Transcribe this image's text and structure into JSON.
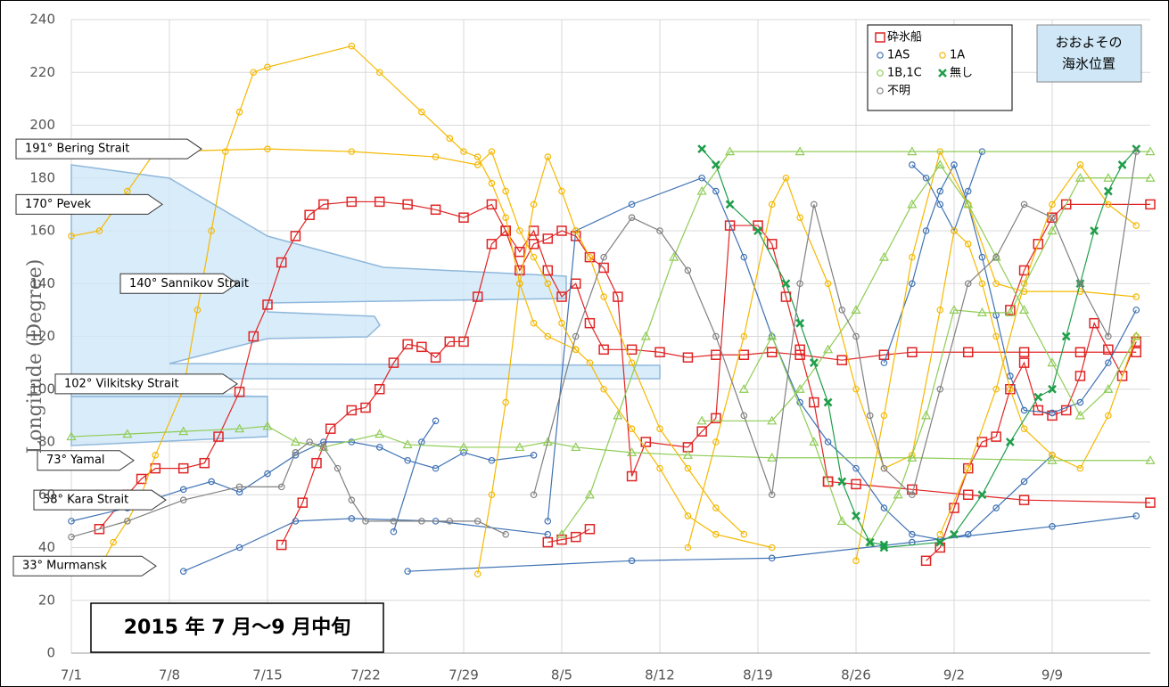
{
  "chart_data": {
    "type": "line",
    "y_label": "Longitude (Degree)",
    "xlim": [
      0,
      77
    ],
    "xticks": [
      {
        "value": 0,
        "label": "7/1"
      },
      {
        "value": 7,
        "label": "7/8"
      },
      {
        "value": 14,
        "label": "7/15"
      },
      {
        "value": 21,
        "label": "7/22"
      },
      {
        "value": 28,
        "label": "7/29"
      },
      {
        "value": 35,
        "label": "8/5"
      },
      {
        "value": 42,
        "label": "8/12"
      },
      {
        "value": 49,
        "label": "8/19"
      },
      {
        "value": 56,
        "label": "8/26"
      },
      {
        "value": 63,
        "label": "9/2"
      },
      {
        "value": 70,
        "label": "9/9"
      }
    ],
    "ylim": [
      0,
      240
    ],
    "yticks": [
      0,
      20,
      40,
      60,
      80,
      100,
      120,
      140,
      160,
      180,
      200,
      220,
      240
    ],
    "grid": true,
    "year_box": "2015 年 7 月～9 月中旬",
    "ice_box": [
      "おおよその",
      "海氷位置"
    ],
    "annotations": [
      {
        "text": "191°  Bering Strait",
        "y": 191
      },
      {
        "text": "170°  Pevek",
        "y": 170
      },
      {
        "text": "140°  Sannikov Strait",
        "y": 140
      },
      {
        "text": "102°  Vilkitsky Strait",
        "y": 102
      },
      {
        "text": "73°  Yamal",
        "y": 73
      },
      {
        "text": "58°  Kara Strait",
        "y": 58
      },
      {
        "text": "33°  Murmansk",
        "y": 33
      }
    ],
    "series": [
      {
        "name": "砕氷船",
        "color": "#e02424",
        "marker": "square",
        "tracks": [
          {
            "x": [
              2,
              4,
              5,
              6,
              8,
              9.5,
              10.5,
              12,
              13,
              14,
              15,
              16,
              17,
              18,
              20,
              22,
              24,
              26,
              28,
              30,
              31,
              32,
              33,
              34,
              35,
              36,
              37,
              38,
              40,
              42,
              44,
              46,
              48,
              50,
              52,
              55,
              58,
              60,
              64,
              68,
              72,
              76
            ],
            "values": [
              47,
              60,
              66,
              70,
              70,
              72,
              82,
              99,
              120,
              132,
              148,
              158,
              166,
              170,
              171,
              171,
              170,
              168,
              165,
              170,
              160,
              152,
              160,
              145,
              135,
              140,
              125,
              115,
              115,
              114,
              112,
              113,
              113,
              114,
              113,
              111,
              113,
              114,
              114,
              114,
              114,
              114
            ]
          },
          {
            "x": [
              15,
              16.5,
              17.5,
              18.5,
              20,
              21,
              22,
              23,
              24,
              25,
              26,
              27,
              28,
              29,
              30,
              31,
              32,
              33,
              34,
              35,
              36,
              37,
              38,
              39,
              40,
              41,
              44,
              45,
              46,
              47,
              49,
              50,
              51,
              52,
              53,
              54
            ],
            "values": [
              41,
              57,
              72,
              85,
              92,
              93,
              100,
              110,
              117,
              116,
              112,
              118,
              118,
              135,
              155,
              160,
              145,
              155,
              157,
              160,
              158,
              150,
              146,
              135,
              67,
              80,
              78,
              84,
              89,
              162,
              162,
              155,
              135,
              115,
              95,
              65
            ]
          },
          {
            "x": [
              34,
              35,
              36,
              37
            ],
            "values": [
              42,
              43,
              44,
              47
            ]
          },
          {
            "x": [
              54,
              56,
              60,
              64,
              68,
              77
            ],
            "values": [
              65,
              64,
              62,
              60,
              58,
              57
            ]
          },
          {
            "x": [
              61,
              62,
              63,
              64,
              65,
              66,
              67,
              68,
              69,
              70,
              71,
              72,
              73,
              74,
              75,
              76
            ],
            "values": [
              35,
              40,
              55,
              70,
              80,
              82,
              100,
              110,
              92,
              90,
              92,
              105,
              125,
              115,
              105,
              118
            ]
          },
          {
            "x": [
              67,
              68,
              69,
              70,
              71,
              77
            ],
            "values": [
              130,
              145,
              155,
              165,
              170,
              170
            ]
          }
        ]
      },
      {
        "name": "1AS",
        "color": "#3f72b4",
        "marker": "circle",
        "tracks": [
          {
            "x": [
              0,
              4,
              8,
              10,
              12,
              14,
              16,
              18,
              20,
              22,
              24,
              26,
              28,
              30,
              33
            ],
            "values": [
              50,
              55,
              62,
              65,
              61,
              68,
              75,
              80,
              80,
              78,
              73,
              70,
              76,
              73,
              75
            ]
          },
          {
            "x": [
              8,
              12,
              16,
              20,
              26,
              34
            ],
            "values": [
              31,
              40,
              50,
              51,
              50,
              45
            ]
          },
          {
            "x": [
              23,
              25,
              26
            ],
            "values": [
              46,
              80,
              88
            ]
          },
          {
            "x": [
              34,
              36,
              40,
              45,
              46,
              48,
              50,
              52,
              54,
              56,
              58,
              60,
              62,
              64,
              66,
              68,
              70
            ],
            "values": [
              50,
              160,
              170,
              180,
              175,
              150,
              120,
              95,
              80,
              70,
              55,
              45,
              43,
              45,
              55,
              65,
              75
            ]
          },
          {
            "x": [
              58,
              60,
              61,
              62,
              63,
              64,
              65,
              66,
              67,
              68,
              70,
              72,
              74,
              76
            ],
            "values": [
              110,
              140,
              160,
              175,
              185,
              170,
              150,
              128,
              105,
              92,
              91,
              95,
              110,
              130
            ]
          },
          {
            "x": [
              60,
              61,
              62,
              63,
              64,
              65
            ],
            "values": [
              185,
              180,
              170,
              160,
              175,
              190
            ]
          },
          {
            "x": [
              24,
              40,
              50,
              60,
              70,
              76
            ],
            "values": [
              31,
              35,
              36,
              42,
              48,
              52
            ]
          }
        ]
      },
      {
        "name": "1A",
        "color": "#f5b800",
        "marker": "circle",
        "tracks": [
          {
            "x": [
              2,
              3,
              4,
              5,
              6,
              8,
              9,
              10,
              11,
              12,
              13,
              14,
              20,
              22,
              25,
              27,
              28,
              29,
              30,
              31,
              32,
              33,
              34,
              36,
              37,
              38,
              40,
              42,
              44,
              46,
              50
            ],
            "values": [
              32,
              42,
              50,
              60,
              75,
              100,
              130,
              160,
              190,
              205,
              220,
              222,
              230,
              220,
              205,
              195,
              190,
              188,
              178,
              165,
              140,
              125,
              120,
              115,
              110,
              100,
              85,
              70,
              52,
              45,
              40
            ]
          },
          {
            "x": [
              0,
              2,
              4,
              6,
              14,
              20,
              26,
              29,
              30,
              31,
              32,
              33,
              34,
              35,
              36
            ],
            "values": [
              158,
              160,
              175,
              190,
              191,
              190,
              188,
              185,
              190,
              175,
              160,
              150,
              140,
              125,
              115
            ]
          },
          {
            "x": [
              29,
              30,
              31,
              32,
              33,
              34,
              35,
              36,
              37,
              38,
              40,
              42,
              44,
              46,
              48
            ],
            "values": [
              30,
              60,
              95,
              140,
              170,
              188,
              175,
              160,
              150,
              135,
              110,
              85,
              70,
              55,
              45
            ]
          },
          {
            "x": [
              44,
              46,
              48,
              50,
              51,
              52,
              54,
              56,
              58,
              60,
              62,
              63,
              64,
              65,
              66,
              67,
              68,
              70,
              72,
              74,
              76
            ],
            "values": [
              40,
              80,
              120,
              170,
              180,
              165,
              140,
              100,
              70,
              75,
              130,
              160,
              155,
              140,
              120,
              100,
              85,
              75,
              70,
              90,
              120
            ]
          },
          {
            "x": [
              56,
              58,
              60,
              62,
              64,
              66,
              68,
              72,
              76
            ],
            "values": [
              35,
              90,
              150,
              190,
              170,
              140,
              137,
              137,
              135
            ]
          },
          {
            "x": [
              62,
              64,
              66,
              68,
              70,
              72,
              74,
              76
            ],
            "values": [
              45,
              70,
              100,
              140,
              170,
              185,
              170,
              162
            ]
          }
        ]
      },
      {
        "name": "1B,1C",
        "color": "#8fcc55",
        "marker": "triangle",
        "tracks": [
          {
            "x": [
              0,
              4,
              8,
              12,
              14,
              16,
              18,
              22,
              24,
              28,
              32,
              34,
              36,
              40,
              44,
              50,
              60,
              70,
              77
            ],
            "values": [
              82,
              83,
              84,
              85,
              86,
              80,
              78,
              83,
              79,
              78,
              78,
              80,
              78,
              76,
              75,
              74,
              74,
              73,
              73
            ]
          },
          {
            "x": [
              35,
              37,
              39,
              41,
              43,
              45,
              47,
              52,
              60,
              77
            ],
            "values": [
              45,
              60,
              90,
              120,
              150,
              175,
              190,
              190,
              190,
              190
            ]
          },
          {
            "x": [
              45,
              50,
              52,
              54,
              56,
              58,
              60,
              62,
              64,
              66,
              68,
              70,
              72,
              74,
              76
            ],
            "values": [
              88,
              88,
              100,
              115,
              130,
              150,
              170,
              185,
              170,
              150,
              130,
              110,
              90,
              100,
              120
            ]
          },
          {
            "x": [
              48,
              50,
              53,
              55,
              57,
              59,
              61,
              63,
              65,
              67,
              70,
              72,
              74,
              77
            ],
            "values": [
              100,
              120,
              80,
              50,
              42,
              60,
              90,
              130,
              129,
              129,
              160,
              180,
              180,
              180
            ]
          }
        ]
      },
      {
        "name": "無し",
        "color": "#1f9e4a",
        "marker": "x",
        "tracks": [
          {
            "x": [
              45,
              46,
              47,
              49,
              51,
              52,
              53,
              54,
              55,
              56,
              57,
              58
            ],
            "values": [
              191,
              185,
              170,
              160,
              140,
              125,
              110,
              95,
              65,
              52,
              42,
              41
            ]
          },
          {
            "x": [
              58,
              62,
              63,
              65,
              67,
              69,
              70,
              71,
              72,
              73,
              74,
              75,
              76
            ],
            "values": [
              40,
              42,
              45,
              60,
              80,
              97,
              100,
              120,
              140,
              160,
              175,
              185,
              191
            ]
          }
        ]
      },
      {
        "name": "不明",
        "color": "#808080",
        "marker": "circle",
        "tracks": [
          {
            "x": [
              0,
              4,
              8,
              12,
              15,
              16,
              17,
              18,
              19,
              20,
              21,
              23,
              25,
              27,
              29,
              31
            ],
            "values": [
              44,
              50,
              58,
              63,
              63,
              76,
              80,
              78,
              70,
              58,
              50,
              50,
              50,
              50,
              50,
              45
            ]
          },
          {
            "x": [
              33,
              36,
              38,
              40,
              42,
              44,
              46,
              48,
              50,
              52,
              53,
              55,
              56,
              57,
              58,
              60,
              62,
              64,
              66,
              68,
              70,
              72,
              74,
              76
            ],
            "values": [
              60,
              120,
              150,
              165,
              160,
              145,
              120,
              90,
              60,
              140,
              170,
              130,
              120,
              90,
              70,
              60,
              100,
              140,
              150,
              170,
              165,
              140,
              120,
              190
            ]
          }
        ]
      }
    ]
  }
}
